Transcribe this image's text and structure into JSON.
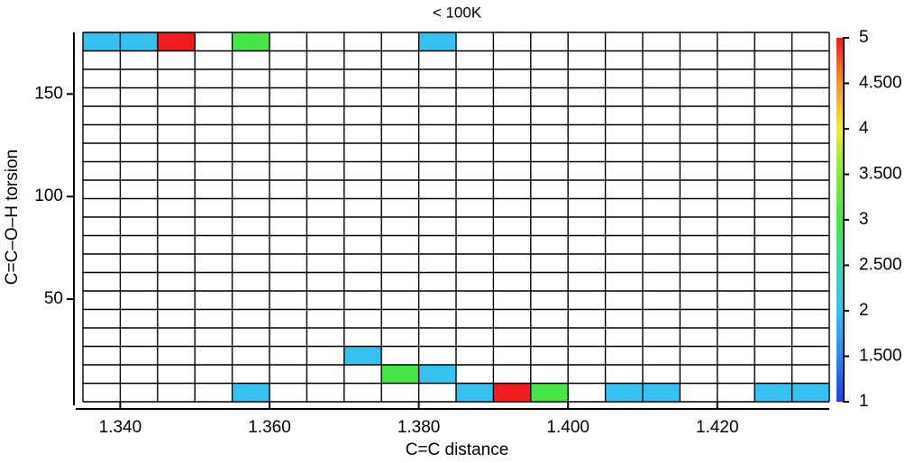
{
  "chart_data": {
    "type": "heatmap",
    "title": "< 100K",
    "xlabel": "C=C distance",
    "ylabel": "C=C–O–H torsion",
    "xbins": [
      1.335,
      1.34,
      1.345,
      1.35,
      1.355,
      1.36,
      1.365,
      1.37,
      1.375,
      1.38,
      1.385,
      1.39,
      1.395,
      1.4,
      1.405,
      1.41,
      1.415,
      1.42,
      1.425,
      1.43,
      1.435
    ],
    "ybins": [
      0,
      9,
      18,
      27,
      36,
      45,
      54,
      63,
      72,
      81,
      90,
      99,
      108,
      117,
      126,
      135,
      144,
      153,
      162,
      171,
      180
    ],
    "xlim": [
      1.335,
      1.435
    ],
    "ylim": [
      0,
      180
    ],
    "xticks": [
      {
        "value": 1.34,
        "label": "1.340"
      },
      {
        "value": 1.36,
        "label": "1.360"
      },
      {
        "value": 1.38,
        "label": "1.380"
      },
      {
        "value": 1.4,
        "label": "1.400"
      },
      {
        "value": 1.42,
        "label": "1.420"
      }
    ],
    "yticks": [
      50,
      100,
      150
    ],
    "z": [
      [
        null,
        null,
        null,
        null,
        2,
        null,
        null,
        null,
        null,
        null,
        2,
        5,
        3,
        null,
        2,
        2,
        null,
        null,
        2,
        2
      ],
      [
        null,
        null,
        null,
        null,
        null,
        null,
        null,
        null,
        3,
        2,
        null,
        null,
        null,
        null,
        null,
        null,
        null,
        null,
        null,
        null
      ],
      [
        null,
        null,
        null,
        null,
        null,
        null,
        null,
        2,
        null,
        null,
        null,
        null,
        null,
        null,
        null,
        null,
        null,
        null,
        null,
        null
      ],
      [
        null,
        null,
        null,
        null,
        null,
        null,
        null,
        null,
        null,
        null,
        null,
        null,
        null,
        null,
        null,
        null,
        null,
        null,
        null,
        null
      ],
      [
        null,
        null,
        null,
        null,
        null,
        null,
        null,
        null,
        null,
        null,
        null,
        null,
        null,
        null,
        null,
        null,
        null,
        null,
        null,
        null
      ],
      [
        null,
        null,
        null,
        null,
        null,
        null,
        null,
        null,
        null,
        null,
        null,
        null,
        null,
        null,
        null,
        null,
        null,
        null,
        null,
        null
      ],
      [
        null,
        null,
        null,
        null,
        null,
        null,
        null,
        null,
        null,
        null,
        null,
        null,
        null,
        null,
        null,
        null,
        null,
        null,
        null,
        null
      ],
      [
        null,
        null,
        null,
        null,
        null,
        null,
        null,
        null,
        null,
        null,
        null,
        null,
        null,
        null,
        null,
        null,
        null,
        null,
        null,
        null
      ],
      [
        null,
        null,
        null,
        null,
        null,
        null,
        null,
        null,
        null,
        null,
        null,
        null,
        null,
        null,
        null,
        null,
        null,
        null,
        null,
        null
      ],
      [
        null,
        null,
        null,
        null,
        null,
        null,
        null,
        null,
        null,
        null,
        null,
        null,
        null,
        null,
        null,
        null,
        null,
        null,
        null,
        null
      ],
      [
        null,
        null,
        null,
        null,
        null,
        null,
        null,
        null,
        null,
        null,
        null,
        null,
        null,
        null,
        null,
        null,
        null,
        null,
        null,
        null
      ],
      [
        null,
        null,
        null,
        null,
        null,
        null,
        null,
        null,
        null,
        null,
        null,
        null,
        null,
        null,
        null,
        null,
        null,
        null,
        null,
        null
      ],
      [
        null,
        null,
        null,
        null,
        null,
        null,
        null,
        null,
        null,
        null,
        null,
        null,
        null,
        null,
        null,
        null,
        null,
        null,
        null,
        null
      ],
      [
        null,
        null,
        null,
        null,
        null,
        null,
        null,
        null,
        null,
        null,
        null,
        null,
        null,
        null,
        null,
        null,
        null,
        null,
        null,
        null
      ],
      [
        null,
        null,
        null,
        null,
        null,
        null,
        null,
        null,
        null,
        null,
        null,
        null,
        null,
        null,
        null,
        null,
        null,
        null,
        null,
        null
      ],
      [
        null,
        null,
        null,
        null,
        null,
        null,
        null,
        null,
        null,
        null,
        null,
        null,
        null,
        null,
        null,
        null,
        null,
        null,
        null,
        null
      ],
      [
        null,
        null,
        null,
        null,
        null,
        null,
        null,
        null,
        null,
        null,
        null,
        null,
        null,
        null,
        null,
        null,
        null,
        null,
        null,
        null
      ],
      [
        null,
        null,
        null,
        null,
        null,
        null,
        null,
        null,
        null,
        null,
        null,
        null,
        null,
        null,
        null,
        null,
        null,
        null,
        null,
        null
      ],
      [
        null,
        null,
        null,
        null,
        null,
        null,
        null,
        null,
        null,
        null,
        null,
        null,
        null,
        null,
        null,
        null,
        null,
        null,
        null,
        null
      ],
      [
        2,
        2,
        5,
        null,
        3,
        null,
        null,
        null,
        null,
        2,
        null,
        null,
        null,
        null,
        null,
        null,
        null,
        null,
        null,
        null
      ]
    ],
    "colorbar": {
      "lim": [
        1,
        5
      ],
      "ticks": [
        1,
        {
          "value": 1.5,
          "label": "1.500"
        },
        2,
        {
          "value": 2.5,
          "label": "2.500"
        },
        3,
        {
          "value": 3.5,
          "label": "3.500"
        },
        4,
        {
          "value": 4.5,
          "label": "4.500"
        },
        5
      ],
      "colors": [
        "#1a3cf0",
        "#2a8af0",
        "#35c2f0",
        "#3fd8b0",
        "#47e647",
        "#86e83c",
        "#f0ee30",
        "#f09a2a",
        "#ee1c1c"
      ]
    }
  }
}
